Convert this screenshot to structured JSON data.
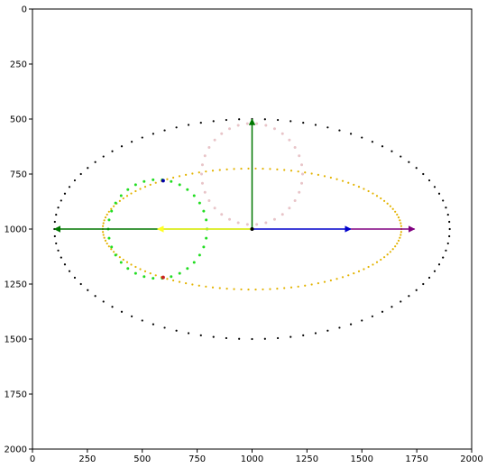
{
  "chart_data": {
    "type": "scatter",
    "title": "",
    "xlabel": "",
    "ylabel": "",
    "xlim": [
      0,
      2000
    ],
    "ylim": [
      2000,
      0
    ],
    "y_inverted": true,
    "grid": false,
    "x_ticks": [
      "0",
      "250",
      "500",
      "750",
      "1000",
      "1250",
      "1500",
      "1750",
      "2000"
    ],
    "y_ticks": [
      "0",
      "250",
      "500",
      "750",
      "1000",
      "1250",
      "1500",
      "1750",
      "2000"
    ],
    "ellipses": [
      {
        "center": [
          1000,
          1000
        ],
        "radius_x": 900,
        "radius_y": 500,
        "color": "#000000",
        "style": "dotted",
        "point_count": 96
      },
      {
        "center": [
          1000,
          1000
        ],
        "radius_x": 680,
        "radius_y": 275,
        "color": "#e3b300",
        "style": "dotted",
        "point_count": 130
      },
      {
        "center": [
          1000,
          750
        ],
        "radius_x": 230,
        "radius_y": 230,
        "color": "#e8c4c8",
        "style": "dotted",
        "point_count": 34
      },
      {
        "center": [
          570,
          1000
        ],
        "radius_x": 225,
        "radius_y": 225,
        "color": "#22dd22",
        "style": "dotted",
        "point_count": 34
      }
    ],
    "arrows": [
      {
        "from": [
          1000,
          1000
        ],
        "to": [
          1000,
          500
        ],
        "color": "#007700"
      },
      {
        "from": [
          1000,
          1000
        ],
        "to": [
          100,
          1000
        ],
        "color": "#007700"
      },
      {
        "from": [
          1000,
          1000
        ],
        "to": [
          1450,
          1000
        ],
        "color": "#0000cc"
      },
      {
        "from": [
          1450,
          1000
        ],
        "to": [
          1740,
          1000
        ],
        "color": "#800080"
      },
      {
        "from": [
          1000,
          1000
        ],
        "to": [
          570,
          1000
        ],
        "color": "#ffff22"
      }
    ],
    "points": [
      {
        "x": 1000,
        "y": 1000,
        "color": "#000000"
      },
      {
        "x": 595,
        "y": 780,
        "color": "#0000aa"
      },
      {
        "x": 595,
        "y": 1220,
        "color": "#cc2222"
      }
    ]
  }
}
